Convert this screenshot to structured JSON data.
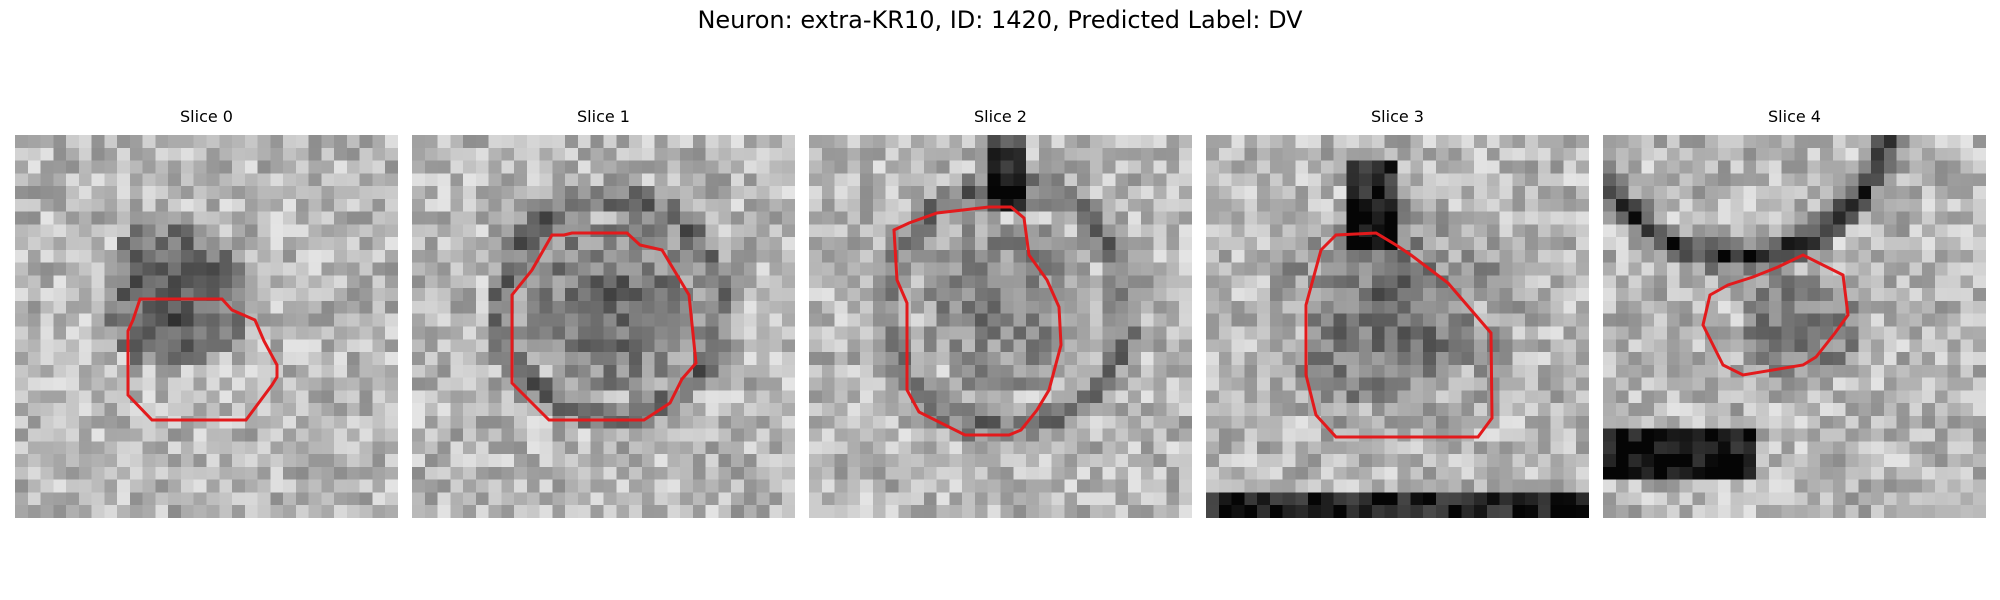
{
  "figure": {
    "title": "Neuron: extra-KR10, ID: 1420, Predicted Label: DV"
  },
  "slices": [
    {
      "title": "Slice 0"
    },
    {
      "title": "Slice 1"
    },
    {
      "title": "Slice 2"
    },
    {
      "title": "Slice 3"
    },
    {
      "title": "Slice 4"
    }
  ],
  "colors": {
    "outline": "#e31a1c",
    "background": "#ffffff"
  }
}
